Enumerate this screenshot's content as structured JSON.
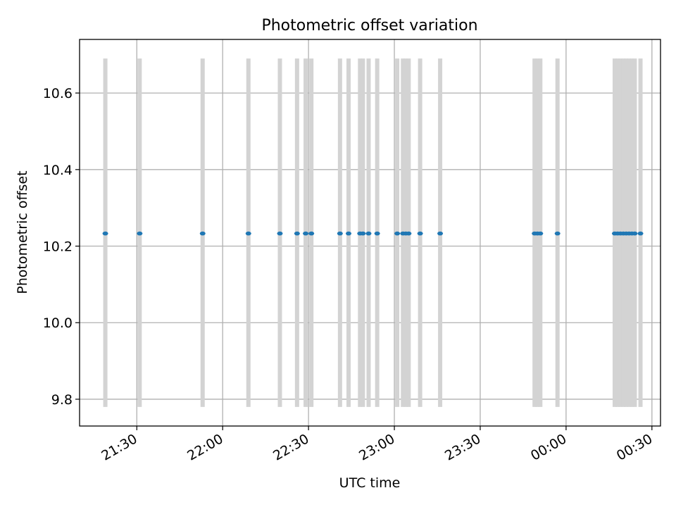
{
  "chart_data": {
    "type": "scatter",
    "title": "Photometric offset variation",
    "xlabel": "UTC time",
    "ylabel": "Photometric offset",
    "x_axis_type": "time",
    "x_range": [
      "21:10",
      "00:33"
    ],
    "ylim": [
      9.73,
      10.74
    ],
    "x_ticks": [
      "21:30",
      "22:00",
      "22:30",
      "23:00",
      "23:30",
      "00:00",
      "00:30"
    ],
    "y_ticks": [
      9.8,
      10.0,
      10.2,
      10.4,
      10.6
    ],
    "grid": true,
    "error_bar_range": [
      9.78,
      10.69
    ],
    "colors": {
      "points": "#1f77b4",
      "error_bars": "#d3d3d3",
      "grid": "#b0b0b0"
    },
    "series": [
      {
        "times": [
          "21:19",
          "21:31",
          "21:53",
          "22:09",
          "22:20",
          "22:26",
          "22:29",
          "22:31",
          "22:41",
          "22:44",
          "22:48",
          "22:49",
          "22:51",
          "22:54",
          "23:01",
          "23:03",
          "23:04",
          "23:05",
          "23:09",
          "23:16",
          "23:49",
          "23:50",
          "23:51",
          "23:57",
          "00:17",
          "00:18",
          "00:19",
          "00:20",
          "00:21",
          "00:22",
          "00:23",
          "00:24",
          "00:26"
        ],
        "values": [
          10.233,
          10.233,
          10.233,
          10.233,
          10.233,
          10.233,
          10.233,
          10.233,
          10.233,
          10.233,
          10.233,
          10.233,
          10.233,
          10.233,
          10.233,
          10.233,
          10.233,
          10.233,
          10.233,
          10.233,
          10.233,
          10.233,
          10.233,
          10.233,
          10.233,
          10.233,
          10.233,
          10.233,
          10.233,
          10.233,
          10.233,
          10.233,
          10.233
        ]
      }
    ]
  }
}
